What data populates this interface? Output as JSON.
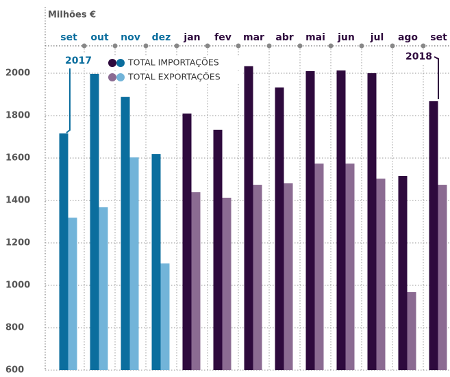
{
  "chart_data": {
    "type": "bar",
    "title": "Milhões €",
    "categories": [
      "set",
      "out",
      "nov",
      "dez",
      "jan",
      "fev",
      "mar",
      "abr",
      "mai",
      "jun",
      "jul",
      "ago",
      "set"
    ],
    "series": [
      {
        "name": "TOTAL IMPORTAÇÕES",
        "colors": [
          "#0b6e9e",
          "#0b6e9e",
          "#0b6e9e",
          "#0b6e9e",
          "#2e0a3d",
          "#2e0a3d",
          "#2e0a3d",
          "#2e0a3d",
          "#2e0a3d",
          "#2e0a3d",
          "#2e0a3d",
          "#2e0a3d",
          "#2e0a3d"
        ],
        "values": [
          1716,
          1997,
          1888,
          1619,
          1810,
          1733,
          2033,
          1933,
          2010,
          2013,
          2000,
          1516,
          1868
        ]
      },
      {
        "name": "TOTAL EXPORTAÇÕES",
        "colors": [
          "#72b4d9",
          "#72b4d9",
          "#72b4d9",
          "#72b4d9",
          "#8b6b92",
          "#8b6b92",
          "#8b6b92",
          "#8b6b92",
          "#8b6b92",
          "#8b6b92",
          "#8b6b92",
          "#8b6b92",
          "#8b6b92"
        ],
        "values": [
          1319,
          1368,
          1603,
          1103,
          1439,
          1413,
          1474,
          1481,
          1574,
          1574,
          1503,
          968,
          1474
        ]
      }
    ],
    "annotations": [
      {
        "text": "2017",
        "color": "#0b6e9e"
      },
      {
        "text": "2018",
        "color": "#2e0a3d"
      }
    ],
    "ylim": [
      600,
      2100
    ],
    "yticks": [
      600,
      800,
      1000,
      1200,
      1400,
      1600,
      1800,
      2000
    ],
    "grid": true
  }
}
